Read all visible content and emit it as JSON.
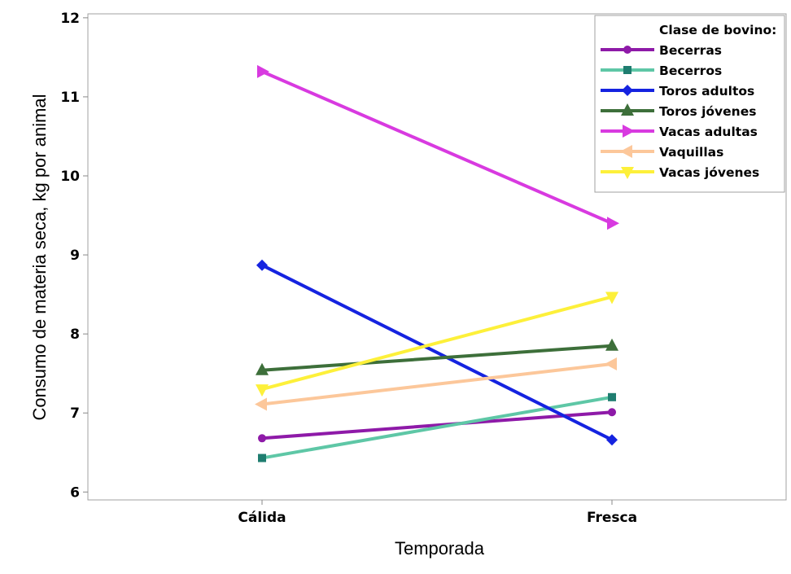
{
  "chart_data": {
    "type": "line",
    "title": "",
    "xlabel": "Temporada",
    "ylabel": "Consumo de materia seca, kg por animal",
    "categories": [
      "Cálida",
      "Fresca"
    ],
    "ylim": [
      5.9,
      12.05
    ],
    "yticks": [
      6,
      7,
      8,
      9,
      10,
      11,
      12
    ],
    "grid": false,
    "legend_title": "Clase de bovino:",
    "legend_position": "top-right",
    "series": [
      {
        "name": "Becerras",
        "values": [
          6.68,
          7.01
        ],
        "color": "#8e1aa8",
        "marker": "circle"
      },
      {
        "name": "Becerros",
        "values": [
          6.43,
          7.2
        ],
        "color": "#5ec7a6",
        "marker_color": "#1f7d70",
        "marker": "square"
      },
      {
        "name": "Toros adultos",
        "values": [
          8.87,
          6.66
        ],
        "color": "#1523e0",
        "marker": "diamond"
      },
      {
        "name": "Toros jóvenes",
        "values": [
          7.54,
          7.85
        ],
        "color": "#3d6f3a",
        "marker": "triangle-up"
      },
      {
        "name": "Vacas adultas",
        "values": [
          11.32,
          9.4
        ],
        "color": "#d83ae0",
        "marker": "triangle-right"
      },
      {
        "name": "Vaquillas",
        "values": [
          7.11,
          7.62
        ],
        "color": "#fcc79a",
        "marker": "triangle-left"
      },
      {
        "name": "Vacas jóvenes",
        "values": [
          7.3,
          8.47
        ],
        "color": "#fdf03a",
        "marker": "triangle-down"
      }
    ]
  }
}
